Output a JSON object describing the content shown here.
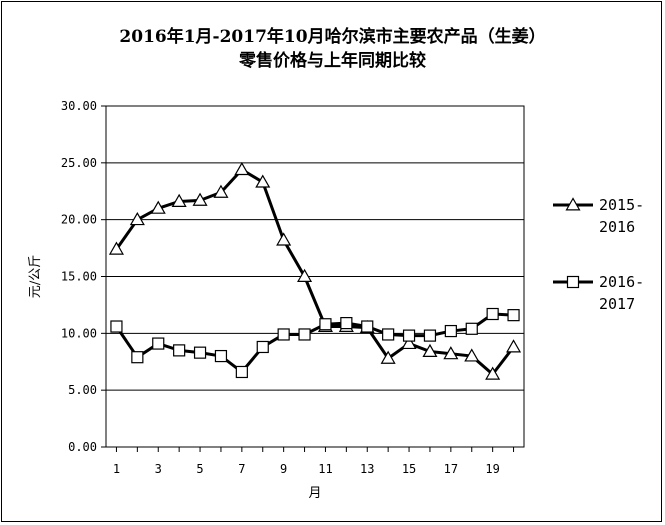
{
  "chart_data": {
    "type": "line",
    "title_line1": "2016年1月-2017年10月哈尔滨市主要农产品（生姜）",
    "title_line2": "零售价格与上年同期比较",
    "xlabel": "月",
    "ylabel": "元/公斤",
    "x": [
      1,
      2,
      3,
      4,
      5,
      6,
      7,
      8,
      9,
      10,
      11,
      12,
      13,
      14,
      15,
      16,
      17,
      18,
      19,
      20
    ],
    "x_tick_labels": [
      "1",
      "3",
      "5",
      "7",
      "9",
      "11",
      "13",
      "15",
      "17",
      "19"
    ],
    "y_tick_labels": [
      "0.00",
      "5.00",
      "10.00",
      "15.00",
      "20.00",
      "25.00",
      "30.00"
    ],
    "xlim": [
      0.5,
      20.5
    ],
    "ylim": [
      0,
      30
    ],
    "grid": "horizontal",
    "legend_position": "right",
    "series": [
      {
        "name_line1": "2015-",
        "name_line2": "2016",
        "marker": "triangle",
        "color": "#000000",
        "values": [
          17.4,
          20.0,
          21.0,
          21.6,
          21.7,
          22.4,
          24.4,
          23.3,
          18.2,
          15.0,
          10.6,
          10.6,
          10.5,
          7.8,
          9.1,
          8.4,
          8.2,
          8.0,
          6.4,
          8.8
        ]
      },
      {
        "name_line1": "2016-",
        "name_line2": "2017",
        "marker": "square",
        "color": "#000000",
        "values": [
          10.6,
          7.9,
          9.1,
          8.5,
          8.3,
          8.0,
          6.6,
          8.8,
          9.9,
          9.9,
          10.8,
          10.9,
          10.6,
          9.9,
          9.8,
          9.8,
          10.2,
          10.4,
          11.7,
          11.6
        ]
      }
    ]
  }
}
